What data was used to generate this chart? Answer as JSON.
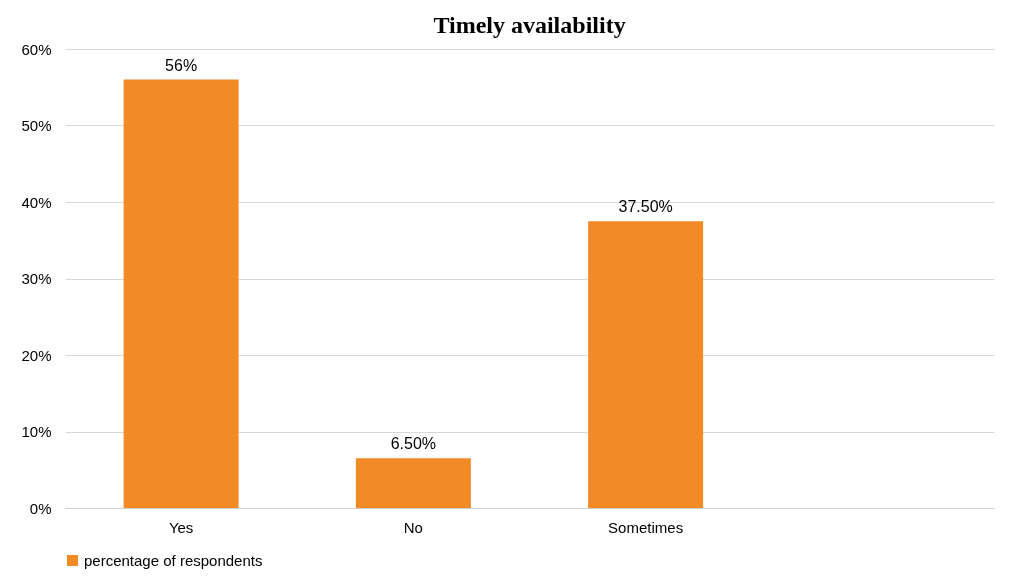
{
  "chart_data": {
    "type": "bar",
    "title": "Timely availability",
    "categories": [
      "Yes",
      "No",
      "Sometimes",
      null
    ],
    "series": [
      {
        "name": "percentage of respondents",
        "color": "#f28a26",
        "values": [
          56,
          6.5,
          37.5,
          null
        ],
        "value_labels": [
          "56%",
          "6.50%",
          "37.50%",
          null
        ]
      }
    ],
    "ylim": [
      0,
      60
    ],
    "yticks": [
      {
        "value": 0,
        "label": "0%"
      },
      {
        "value": 10,
        "label": "10%"
      },
      {
        "value": 20,
        "label": "20%"
      },
      {
        "value": 30,
        "label": "30%"
      },
      {
        "value": 40,
        "label": "40%"
      },
      {
        "value": 50,
        "label": "50%"
      },
      {
        "value": 60,
        "label": "60%"
      }
    ],
    "grid": "y",
    "legend": "bottom"
  }
}
